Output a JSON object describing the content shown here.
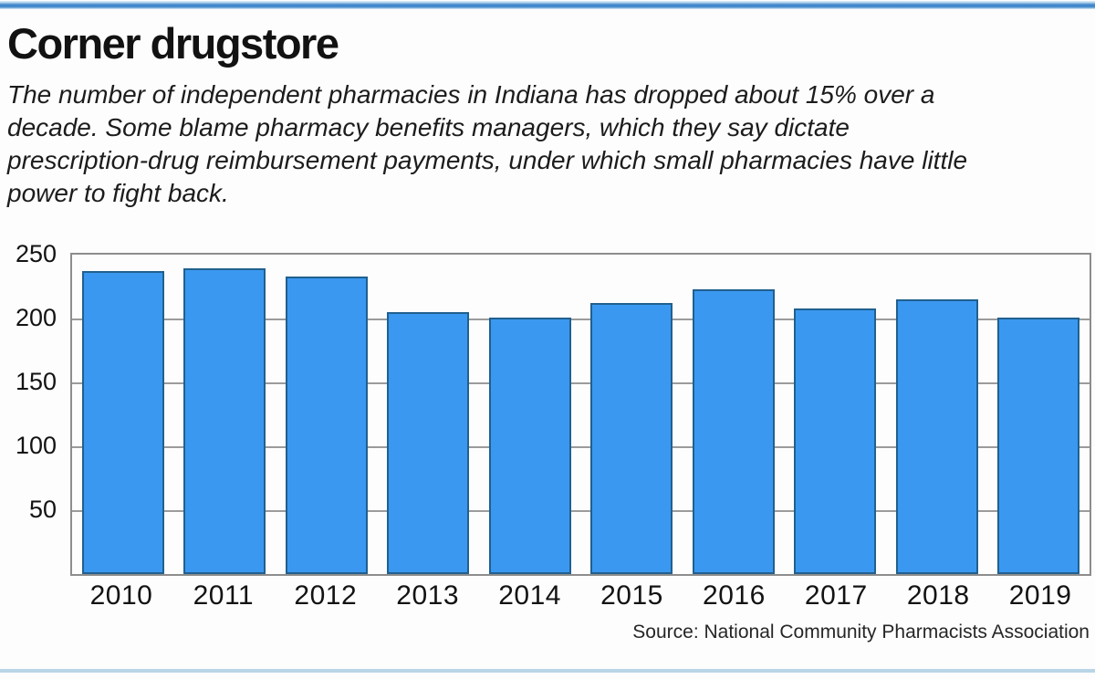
{
  "header": {
    "title": "Corner drugstore",
    "subtitle_lines": [
      "The number of independent pharmacies in Indiana has dropped about 15% over a",
      "decade. Some blame pharmacy benefits managers, which they say dictate",
      "prescription-drug reimbursement payments, under which small pharmacies have little",
      "power to fight back."
    ]
  },
  "chart_data": {
    "type": "bar",
    "title": "Corner drugstore",
    "categories": [
      "2010",
      "2011",
      "2012",
      "2013",
      "2014",
      "2015",
      "2016",
      "2017",
      "2018",
      "2019"
    ],
    "values": [
      237,
      239,
      233,
      205,
      201,
      212,
      223,
      208,
      215,
      201
    ],
    "xlabel": "",
    "ylabel": "",
    "ylim": [
      0,
      250
    ],
    "yticks": [
      50,
      100,
      150,
      200,
      250
    ],
    "grid": "horizontal",
    "legend": "none",
    "bar_color": "#3b98f0",
    "bar_border_color": "#20608f"
  },
  "footer": {
    "source": "Source: National Community Pharmacists Association"
  },
  "colors": {
    "top_rule_blue": "#3f86cb",
    "bottom_rule_blue": "#b9d5e7",
    "gridline": "#9b9b9b",
    "plot_border": "#8d8d8d",
    "text": "#141414"
  }
}
